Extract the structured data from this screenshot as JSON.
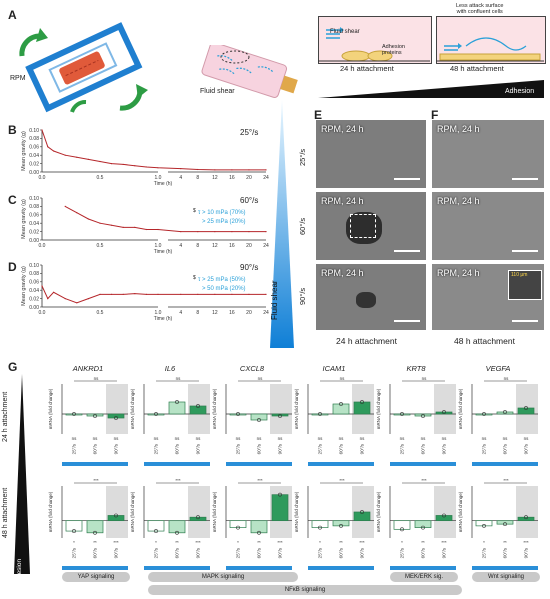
{
  "panels": {
    "A": {
      "letter": "A",
      "rpm_label": "RPM",
      "fluid_shear_label": "Fluid shear",
      "box1": {
        "fluid_shear": "Fluid shear",
        "adhesion": "Adhesion\nproteins",
        "caption": "24 h attachment"
      },
      "box2": {
        "note": "Less attack surface\nwith confluent cells",
        "caption": "48 h attachment"
      },
      "adhesion_bar": "Adhesion"
    },
    "B": {
      "letter": "B",
      "speed": "25°/s"
    },
    "C": {
      "letter": "C",
      "speed": "60°/s",
      "legend_sym": "$",
      "legend1": "τ > 10 mPa (70%)",
      "legend2": "> 25 mPa (20%)"
    },
    "D": {
      "letter": "D",
      "speed": "90°/s",
      "legend_sym": "$",
      "legend1": "τ > 25 mPa (50%)",
      "legend2": "> 50 mPa (20%)"
    },
    "E": {
      "letter": "E",
      "caption": "24 h attachment"
    },
    "F": {
      "letter": "F",
      "caption": "48 h attachment",
      "inset": "110 μm"
    },
    "G": {
      "letter": "G"
    }
  },
  "trace_axes": {
    "ylabel": "Mean gravity (g)",
    "xlabel": "Time (h)",
    "yticks": [
      "0.00",
      "0.02",
      "0.04",
      "0.06",
      "0.08",
      "0.10"
    ],
    "xticks_left": [
      "0.0",
      "0.5",
      "1.0"
    ],
    "xticks_right": [
      "4",
      "8",
      "12",
      "16",
      "20",
      "24"
    ]
  },
  "fluid_shear_bar": "Fluid shear",
  "speeds": [
    "25°/s",
    "60°/s",
    "90°/s"
  ],
  "micro_caption": "RPM, 24 h",
  "genes": [
    "ANKRD1",
    "IL6",
    "CXCL8",
    "ICAM1",
    "KRT8",
    "VEGFA"
  ],
  "row_labels": {
    "r24": "24 h attachment",
    "r48": "48 h attachment",
    "adhesion": "Adhesion"
  },
  "mrna_ylabel": "mRNA (fold change)",
  "pathways": {
    "yap": "YAP signaling",
    "mapk": "MAPK signaling",
    "nfkb": "NFκB signaling",
    "mek": "MEK/ERK sig.",
    "wnt": "Wnt signaling"
  },
  "sig_labels": [
    "ns",
    "*",
    "**",
    "***"
  ],
  "chart_data": [
    {
      "type": "line",
      "title": "25°/s",
      "xlabel": "Time (h)",
      "ylabel": "Mean gravity (g)",
      "ylim": [
        0,
        0.1
      ],
      "series": [
        {
          "x": [
            0,
            0.05,
            0.1,
            0.2,
            0.3,
            0.4,
            0.5,
            0.6,
            0.7,
            0.8,
            0.9,
            1.0,
            4,
            8,
            12,
            16,
            20,
            24
          ],
          "values": [
            0.1,
            0.06,
            0.05,
            0.04,
            0.035,
            0.03,
            0.025,
            0.02,
            0.018,
            0.015,
            0.012,
            0.01,
            0.008,
            0.006,
            0.005,
            0.005,
            0.005,
            0.005
          ]
        }
      ]
    },
    {
      "type": "line",
      "title": "60°/s",
      "xlabel": "Time (h)",
      "ylabel": "Mean gravity (g)",
      "ylim": [
        0,
        0.1
      ],
      "series": [
        {
          "x": [
            0.2,
            0.3,
            0.4,
            0.5,
            0.6,
            0.7,
            0.8,
            0.9,
            1.0,
            4,
            8,
            12,
            16,
            20,
            24
          ],
          "values": [
            0.08,
            0.065,
            0.05,
            0.04,
            0.035,
            0.03,
            0.03,
            0.025,
            0.025,
            0.02,
            0.02,
            0.02,
            0.02,
            0.02,
            0.02
          ]
        }
      ]
    },
    {
      "type": "line",
      "title": "90°/s",
      "xlabel": "Time (h)",
      "ylabel": "Mean gravity (g)",
      "ylim": [
        0,
        0.1
      ],
      "series": [
        {
          "x": [
            0,
            0.05,
            0.1,
            0.2,
            0.3,
            0.4,
            0.5,
            0.6,
            0.7,
            0.8,
            0.9,
            1.0,
            4,
            8,
            12,
            16,
            20,
            24
          ],
          "values": [
            0.05,
            0.02,
            0.035,
            0.02,
            0.01,
            0.02,
            0.03,
            0.03,
            0.03,
            0.032,
            0.03,
            0.03,
            0.03,
            0.03,
            0.03,
            0.03,
            0.03,
            0.03
          ]
        }
      ]
    },
    {
      "type": "bar",
      "title": "24 h attachment",
      "categories": [
        "25°/s",
        "60°/s",
        "90°/s"
      ],
      "ylabel": "mRNA (fold change)",
      "series": [
        {
          "name": "ANKRD1",
          "values": [
            1.0,
            0.9,
            0.8
          ]
        },
        {
          "name": "IL6",
          "values": [
            1.0,
            1.6,
            1.4
          ]
        },
        {
          "name": "CXCL8",
          "values": [
            1.0,
            0.7,
            0.9
          ]
        },
        {
          "name": "ICAM1",
          "values": [
            1.0,
            1.5,
            1.6
          ]
        },
        {
          "name": "KRT8",
          "values": [
            1.0,
            0.9,
            1.1
          ]
        },
        {
          "name": "VEGFA",
          "values": [
            1.0,
            1.1,
            1.3
          ]
        }
      ]
    },
    {
      "type": "bar",
      "title": "48 h attachment",
      "categories": [
        "25°/s",
        "60°/s",
        "90°/s"
      ],
      "ylabel": "mRNA (fold change)",
      "series": [
        {
          "name": "ANKRD1",
          "values": [
            0.4,
            0.3,
            1.3
          ]
        },
        {
          "name": "IL6",
          "values": [
            0.4,
            0.3,
            1.2
          ]
        },
        {
          "name": "CXCL8",
          "values": [
            0.6,
            0.3,
            2.5
          ]
        },
        {
          "name": "ICAM1",
          "values": [
            0.6,
            0.7,
            1.5
          ]
        },
        {
          "name": "KRT8",
          "values": [
            0.5,
            0.6,
            1.3
          ]
        },
        {
          "name": "VEGFA",
          "values": [
            0.7,
            0.8,
            1.2
          ]
        }
      ]
    }
  ]
}
